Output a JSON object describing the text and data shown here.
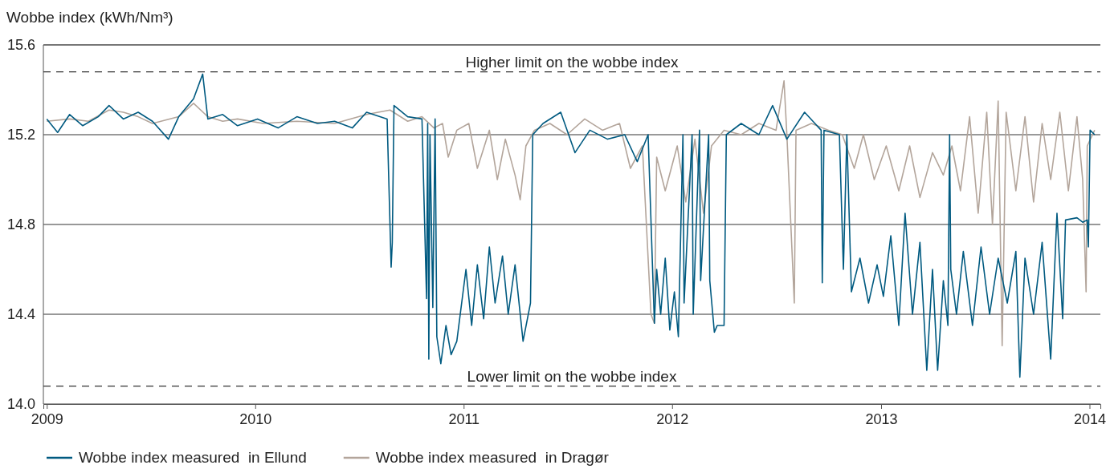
{
  "chart_data": {
    "type": "line",
    "ylabel": "Wobbe index (kWh/Nm³)",
    "xlim": [
      "2008-12-26",
      "2014-01-20"
    ],
    "xticks": [
      "2009",
      "2010",
      "2011",
      "2012",
      "2013",
      "2014"
    ],
    "ylim": [
      14.0,
      15.6
    ],
    "yticks": [
      {
        "value": 14.0,
        "label": "14.0"
      },
      14.4,
      14.8,
      15.2,
      15.6
    ],
    "grid": "y",
    "legend": "bottom",
    "line_style": "solid",
    "marker": "none",
    "ref_lines": [
      {
        "axis": "y",
        "value": 15.48,
        "label": "Higher limit on the wobbe index",
        "color": "#333333",
        "line_style": "dashed"
      },
      {
        "axis": "y",
        "value": 14.08,
        "label": "Lower limit on the wobbe index",
        "color": "#333333",
        "line_style": "dashed"
      }
    ],
    "series": [
      {
        "name": "Wobbe index measured  in Dragør",
        "color": "#b3a59b",
        "x": [
          "2009-01-01",
          "2009-02-10",
          "2009-03-15",
          "2009-04-20",
          "2009-05-15",
          "2009-06-10",
          "2009-07-05",
          "2009-08-20",
          "2009-09-15",
          "2009-10-10",
          "2009-11-05",
          "2009-12-01",
          "2010-01-15",
          "2010-03-15",
          "2010-05-20",
          "2010-07-15",
          "2010-08-25",
          "2010-09-25",
          "2010-10-20",
          "2010-11-10",
          "2010-11-25",
          "2010-12-05",
          "2010-12-20",
          "2011-01-10",
          "2011-01-25",
          "2011-02-15",
          "2011-03-01",
          "2011-03-15",
          "2011-04-01",
          "2011-04-10",
          "2011-04-20",
          "2011-05-05",
          "2011-06-01",
          "2011-07-01",
          "2011-08-01",
          "2011-09-01",
          "2011-10-01",
          "2011-10-20",
          "2011-11-10",
          "2011-11-25",
          "2011-12-01",
          "2011-12-05",
          "2011-12-20",
          "2012-01-10",
          "2012-01-25",
          "2012-02-10",
          "2012-02-25",
          "2012-03-10",
          "2012-04-01",
          "2012-05-01",
          "2012-06-01",
          "2012-07-01",
          "2012-07-15",
          "2012-07-20",
          "2012-08-02",
          "2012-08-05",
          "2012-09-01",
          "2012-10-01",
          "2012-10-25",
          "2012-11-15",
          "2012-12-01",
          "2012-12-20",
          "2013-01-10",
          "2013-02-01",
          "2013-02-20",
          "2013-03-10",
          "2013-04-01",
          "2013-04-20",
          "2013-05-05",
          "2013-05-20",
          "2013-06-05",
          "2013-06-20",
          "2013-07-05",
          "2013-07-15",
          "2013-07-25",
          "2013-08-01",
          "2013-08-08",
          "2013-08-25",
          "2013-09-10",
          "2013-09-25",
          "2013-10-10",
          "2013-10-25",
          "2013-11-10",
          "2013-11-25",
          "2013-12-10",
          "2013-12-20",
          "2013-12-26",
          "2013-12-28",
          "2014-01-10"
        ],
        "values": [
          15.26,
          15.27,
          15.26,
          15.31,
          15.3,
          15.28,
          15.25,
          15.28,
          15.34,
          15.28,
          15.26,
          15.27,
          15.25,
          15.26,
          15.25,
          15.29,
          15.31,
          15.26,
          15.28,
          15.23,
          15.25,
          15.1,
          15.22,
          15.25,
          15.05,
          15.22,
          15.0,
          15.18,
          15.02,
          14.91,
          15.15,
          15.22,
          15.25,
          15.2,
          15.27,
          15.22,
          15.25,
          15.05,
          15.15,
          14.4,
          14.36,
          15.1,
          14.95,
          15.15,
          14.9,
          15.18,
          14.85,
          15.15,
          15.22,
          15.2,
          15.25,
          15.22,
          15.44,
          15.2,
          14.45,
          15.22,
          15.25,
          15.22,
          15.2,
          15.05,
          15.2,
          15.0,
          15.15,
          14.95,
          15.15,
          14.92,
          15.12,
          15.02,
          15.15,
          14.95,
          15.28,
          14.85,
          15.3,
          14.8,
          15.35,
          14.26,
          15.3,
          14.95,
          15.28,
          14.9,
          15.25,
          15.0,
          15.3,
          14.95,
          15.28,
          15.0,
          14.5,
          15.15,
          15.22
        ]
      },
      {
        "name": "Wobbe index measured  in Ellund",
        "color": "#005a80",
        "x": [
          "2009-01-01",
          "2009-01-20",
          "2009-02-10",
          "2009-03-05",
          "2009-04-01",
          "2009-04-20",
          "2009-05-15",
          "2009-06-10",
          "2009-07-05",
          "2009-08-02",
          "2009-08-20",
          "2009-09-15",
          "2009-10-01",
          "2009-10-10",
          "2009-11-05",
          "2009-12-01",
          "2010-01-05",
          "2010-02-10",
          "2010-03-15",
          "2010-04-20",
          "2010-05-20",
          "2010-06-20",
          "2010-07-15",
          "2010-08-20",
          "2010-08-27",
          "2010-08-29",
          "2010-09-01",
          "2010-09-25",
          "2010-10-20",
          "2010-10-28",
          "2010-10-30",
          "2010-11-01",
          "2010-11-03",
          "2010-11-08",
          "2010-11-12",
          "2010-11-15",
          "2010-11-22",
          "2010-12-01",
          "2010-12-10",
          "2010-12-20",
          "2011-01-05",
          "2011-01-15",
          "2011-01-25",
          "2011-02-05",
          "2011-02-15",
          "2011-02-25",
          "2011-03-10",
          "2011-03-20",
          "2011-04-01",
          "2011-04-15",
          "2011-04-28",
          "2011-05-02",
          "2011-05-20",
          "2011-06-20",
          "2011-07-15",
          "2011-08-10",
          "2011-09-10",
          "2011-10-10",
          "2011-11-01",
          "2011-11-20",
          "2011-12-01",
          "2011-12-05",
          "2011-12-12",
          "2011-12-20",
          "2011-12-28",
          "2012-01-05",
          "2012-01-12",
          "2012-01-20",
          "2012-01-22",
          "2012-02-05",
          "2012-02-07",
          "2012-02-18",
          "2012-02-20",
          "2012-03-05",
          "2012-03-07",
          "2012-03-15",
          "2012-03-20",
          "2012-04-01",
          "2012-04-05",
          "2012-05-01",
          "2012-06-01",
          "2012-06-25",
          "2012-07-20",
          "2012-08-20",
          "2012-09-18",
          "2012-09-20",
          "2012-09-23",
          "2012-10-20",
          "2012-10-27",
          "2012-11-02",
          "2012-11-10",
          "2012-11-25",
          "2012-12-10",
          "2012-12-25",
          "2013-01-05",
          "2013-01-18",
          "2013-02-01",
          "2013-02-12",
          "2013-02-25",
          "2013-03-10",
          "2013-03-22",
          "2013-04-01",
          "2013-04-10",
          "2013-04-20",
          "2013-04-28",
          "2013-05-01",
          "2013-05-03",
          "2013-05-13",
          "2013-05-25",
          "2013-06-10",
          "2013-06-25",
          "2013-07-10",
          "2013-07-25",
          "2013-08-10",
          "2013-08-25",
          "2013-09-01",
          "2013-09-10",
          "2013-09-25",
          "2013-10-10",
          "2013-10-25",
          "2013-11-05",
          "2013-11-15",
          "2013-11-20",
          "2013-12-10",
          "2013-12-20",
          "2013-12-28",
          "2013-12-30",
          "2014-01-02",
          "2014-01-10"
        ],
        "values": [
          15.27,
          15.21,
          15.29,
          15.24,
          15.28,
          15.33,
          15.27,
          15.3,
          15.26,
          15.18,
          15.28,
          15.36,
          15.47,
          15.27,
          15.29,
          15.24,
          15.27,
          15.23,
          15.28,
          15.25,
          15.26,
          15.23,
          15.3,
          15.27,
          14.61,
          14.72,
          15.33,
          15.28,
          15.27,
          14.47,
          15.25,
          14.2,
          15.2,
          14.43,
          15.27,
          14.3,
          14.18,
          14.35,
          14.22,
          14.28,
          14.6,
          14.35,
          14.62,
          14.38,
          14.7,
          14.45,
          14.66,
          14.4,
          14.62,
          14.28,
          14.45,
          15.2,
          15.25,
          15.3,
          15.12,
          15.22,
          15.18,
          15.2,
          15.08,
          15.2,
          14.36,
          14.6,
          14.4,
          14.65,
          14.33,
          14.5,
          14.3,
          15.2,
          14.45,
          15.2,
          14.4,
          15.22,
          14.55,
          15.2,
          14.55,
          14.32,
          14.35,
          14.35,
          15.2,
          15.25,
          15.2,
          15.33,
          15.18,
          15.3,
          15.22,
          14.54,
          15.22,
          15.2,
          14.6,
          15.2,
          14.5,
          14.65,
          14.45,
          14.62,
          14.48,
          14.75,
          14.35,
          14.85,
          14.4,
          14.72,
          14.15,
          14.6,
          14.15,
          14.55,
          14.35,
          15.2,
          14.6,
          14.4,
          14.68,
          14.35,
          14.7,
          14.4,
          14.65,
          14.45,
          14.68,
          14.12,
          14.65,
          14.4,
          14.72,
          14.2,
          14.85,
          14.38,
          14.82,
          14.83,
          14.81,
          14.82,
          14.7,
          15.22,
          15.2
        ]
      }
    ]
  }
}
